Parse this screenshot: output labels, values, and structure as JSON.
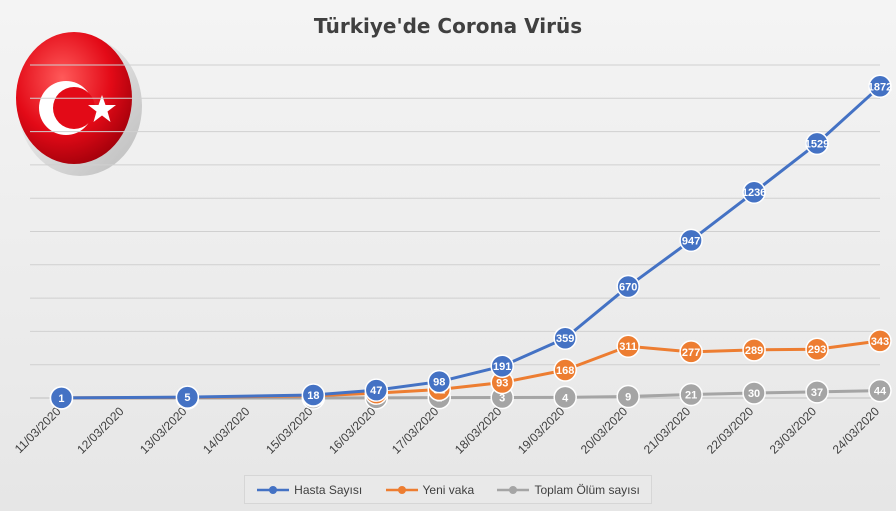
{
  "chart_data": {
    "type": "line",
    "title": "Türkiye'de Corona Virüs",
    "xlabel": "",
    "ylabel": "",
    "categories": [
      "11/03/2020",
      "12/03/2020",
      "13/03/2020",
      "14/03/2020",
      "15/03/2020",
      "16/03/2020",
      "17/03/2020",
      "18/03/2020",
      "19/03/2020",
      "20/03/2020",
      "21/03/2020",
      "22/03/2020",
      "23/03/2020",
      "24/03/2020"
    ],
    "ylim": [
      0,
      2000
    ],
    "grid": true,
    "legend_position": "bottom",
    "series": [
      {
        "name": "Hasta Sayısı",
        "color": "#4472c4",
        "values": [
          1,
          null,
          5,
          null,
          18,
          47,
          98,
          191,
          359,
          670,
          947,
          1236,
          1529,
          1872
        ]
      },
      {
        "name": "Yeni vaka",
        "color": "#ed7d31",
        "values": [
          1,
          null,
          4,
          null,
          13,
          29,
          51,
          93,
          168,
          311,
          277,
          289,
          293,
          343
        ]
      },
      {
        "name": "Toplam Ölüm sayısı",
        "color": "#a5a5a5",
        "values": [
          0,
          null,
          0,
          null,
          0,
          1,
          2,
          3,
          4,
          9,
          21,
          30,
          37,
          44
        ]
      }
    ]
  },
  "flag": {
    "red": "#e30a17",
    "white": "#ffffff"
  }
}
